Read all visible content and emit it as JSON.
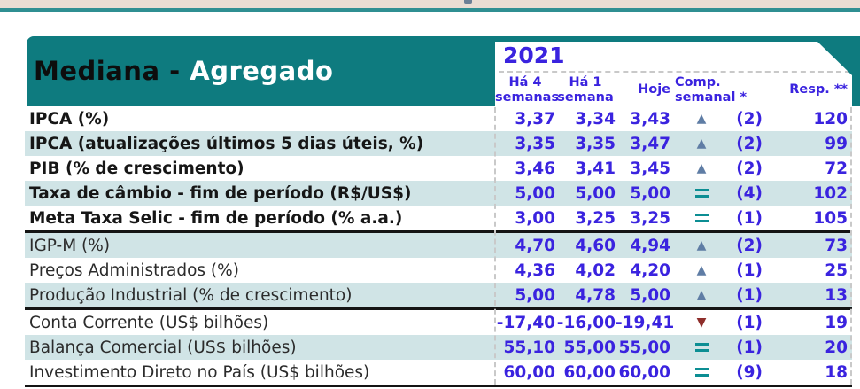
{
  "colors": {
    "teal_band": "#0e7b7f",
    "top_band_beige": "#e9ddd3",
    "top_divider_teal": "#2f8f92",
    "row_stripe": "#d0e4e6",
    "value_blue": "#3a23df",
    "arrow_up": "#5f7da5",
    "arrow_down": "#8e2e2b",
    "equals_teal": "#0c8e93",
    "separator_black": "#141414"
  },
  "header": {
    "title_black": "Mediana - ",
    "title_white": "Agregado",
    "year": "2021",
    "columns": [
      {
        "id": "ha4",
        "line1": "Há 4",
        "line2": "semanas"
      },
      {
        "id": "ha1",
        "line1": "Há 1",
        "line2": "semana"
      },
      {
        "id": "hoje",
        "line1": "Hoje"
      },
      {
        "id": "comp",
        "line1": "Comp.",
        "line2": "semanal *"
      },
      {
        "id": "resp",
        "line1": "Resp. **"
      }
    ]
  },
  "table": {
    "groups": [
      {
        "rows": [
          {
            "label": "IPCA (%)",
            "bold": true,
            "ha4": "3,37",
            "ha1": "3,34",
            "hoje": "3,43",
            "comp": "up",
            "comp_n": "(2)",
            "resp": "120"
          },
          {
            "label": "IPCA (atualizações últimos 5 dias úteis, %)",
            "bold": true,
            "ha4": "3,35",
            "ha1": "3,35",
            "hoje": "3,47",
            "comp": "up",
            "comp_n": "(2)",
            "resp": "99"
          },
          {
            "label": "PIB (% de crescimento)",
            "bold": true,
            "ha4": "3,46",
            "ha1": "3,41",
            "hoje": "3,45",
            "comp": "up",
            "comp_n": "(2)",
            "resp": "72"
          },
          {
            "label": "Taxa de câmbio - fim de período (R$/US$)",
            "bold": true,
            "ha4": "5,00",
            "ha1": "5,00",
            "hoje": "5,00",
            "comp": "equal",
            "comp_n": "(4)",
            "resp": "102"
          },
          {
            "label": "Meta Taxa Selic - fim de período (% a.a.)",
            "bold": true,
            "ha4": "3,00",
            "ha1": "3,25",
            "hoje": "3,25",
            "comp": "equal",
            "comp_n": "(1)",
            "resp": "105"
          }
        ]
      },
      {
        "rows": [
          {
            "label": "IGP-M (%)",
            "bold": false,
            "ha4": "4,70",
            "ha1": "4,60",
            "hoje": "4,94",
            "comp": "up",
            "comp_n": "(2)",
            "resp": "73"
          },
          {
            "label": "Preços Administrados (%)",
            "bold": false,
            "ha4": "4,36",
            "ha1": "4,02",
            "hoje": "4,20",
            "comp": "up",
            "comp_n": "(1)",
            "resp": "25"
          },
          {
            "label": "Produção Industrial (% de crescimento)",
            "bold": false,
            "ha4": "5,00",
            "ha1": "4,78",
            "hoje": "5,00",
            "comp": "up",
            "comp_n": "(1)",
            "resp": "13"
          }
        ]
      },
      {
        "rows": [
          {
            "label": "Conta Corrente (US$ bilhões)",
            "bold": false,
            "ha4": "-17,40",
            "ha1": "-16,00",
            "hoje": "-19,41",
            "comp": "down",
            "comp_n": "(1)",
            "resp": "19"
          },
          {
            "label": "Balança Comercial (US$ bilhões)",
            "bold": false,
            "ha4": "55,10",
            "ha1": "55,00",
            "hoje": "55,00",
            "comp": "equal",
            "comp_n": "(1)",
            "resp": "20"
          },
          {
            "label": "Investimento Direto no País (US$ bilhões)",
            "bold": false,
            "ha4": "60,00",
            "ha1": "60,00",
            "hoje": "60,00",
            "comp": "equal",
            "comp_n": "(9)",
            "resp": "18"
          }
        ]
      }
    ]
  }
}
